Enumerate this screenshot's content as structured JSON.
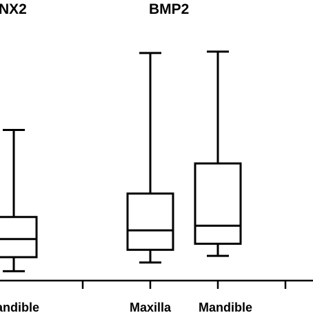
{
  "chart_data": {
    "type": "box",
    "panels": [
      {
        "title": "NX2",
        "categories": [
          "Mandible"
        ],
        "boxes": [
          {
            "category": "Mandible",
            "min": 0.9,
            "q1": 3.0,
            "median": 5.7,
            "q3": 9.0,
            "max": 22.0
          }
        ]
      },
      {
        "title": "BMP2",
        "categories": [
          "Maxilla",
          "Mandible"
        ],
        "boxes": [
          {
            "category": "Maxilla",
            "min": 2.2,
            "q1": 4.1,
            "median": 7.0,
            "q3": 12.5,
            "max": 33.5
          },
          {
            "category": "Mandible",
            "min": 3.2,
            "q1": 5.0,
            "median": 7.7,
            "q3": 17.0,
            "max": 33.7
          }
        ]
      }
    ],
    "ylim": [
      -0.5,
      41
    ],
    "grid": false,
    "legend": "none"
  }
}
